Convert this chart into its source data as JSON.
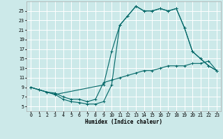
{
  "xlabel": "Humidex (Indice chaleur)",
  "background_color": "#cce9e9",
  "grid_color": "#ffffff",
  "line_color": "#006666",
  "xlim": [
    -0.5,
    23.5
  ],
  "ylim": [
    4.0,
    27.0
  ],
  "xticks": [
    0,
    1,
    2,
    3,
    4,
    5,
    6,
    7,
    8,
    9,
    10,
    11,
    12,
    13,
    14,
    15,
    16,
    17,
    18,
    19,
    20,
    21,
    22,
    23
  ],
  "yticks": [
    5,
    7,
    9,
    11,
    13,
    15,
    17,
    19,
    21,
    23,
    25
  ],
  "line1_x": [
    0,
    1,
    2,
    3,
    4,
    5,
    6,
    7,
    8,
    9,
    10,
    11,
    12,
    13,
    14,
    15,
    16,
    17,
    18,
    19,
    20,
    21,
    22,
    23
  ],
  "line1_y": [
    9.0,
    8.5,
    8.0,
    7.8,
    7.0,
    6.5,
    6.5,
    6.0,
    6.5,
    10.0,
    10.5,
    11.0,
    11.5,
    12.0,
    12.5,
    12.5,
    13.0,
    13.5,
    13.5,
    13.5,
    14.0,
    14.0,
    14.5,
    12.5
  ],
  "line2_x": [
    0,
    1,
    2,
    3,
    9,
    10,
    11,
    12,
    13,
    14,
    15,
    16,
    17,
    18,
    19,
    20,
    21,
    22,
    23
  ],
  "line2_y": [
    9.0,
    8.5,
    8.0,
    7.5,
    9.5,
    16.5,
    22.0,
    24.0,
    26.0,
    25.0,
    25.0,
    25.5,
    25.0,
    25.5,
    21.5,
    16.5,
    15.0,
    13.5,
    12.5
  ],
  "line3_x": [
    0,
    3,
    4,
    5,
    6,
    7,
    8,
    9,
    10,
    11,
    12,
    13,
    14,
    15,
    16,
    17,
    18,
    19,
    20,
    21,
    22,
    23
  ],
  "line3_y": [
    9.0,
    7.5,
    6.5,
    6.0,
    5.8,
    5.5,
    5.5,
    6.0,
    9.5,
    22.0,
    24.0,
    26.0,
    25.0,
    25.0,
    25.5,
    25.0,
    25.5,
    21.5,
    16.5,
    15.0,
    13.5,
    12.5
  ]
}
